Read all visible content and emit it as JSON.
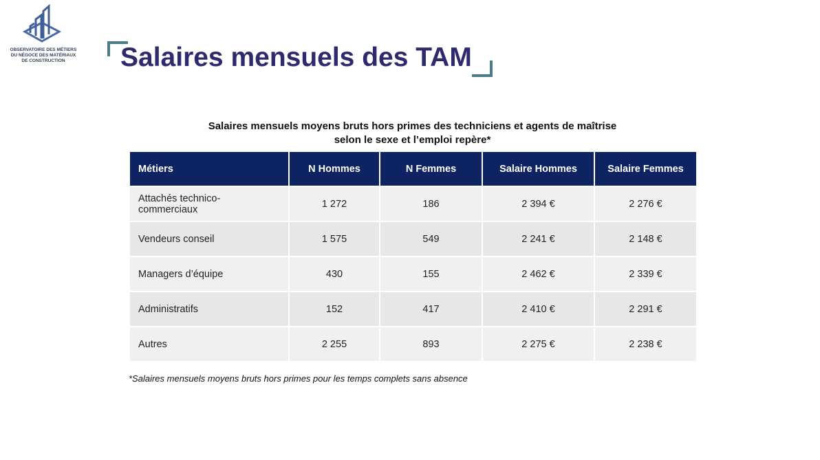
{
  "logo": {
    "lines": [
      "OBSERVATOIRE DES MÉTIERS",
      "DU NÉGOCE DES MATÉRIAUX",
      "DE CONSTRUCTION"
    ]
  },
  "header": {
    "title": "Salaires mensuels des TAM"
  },
  "table": {
    "caption": [
      "Salaires mensuels moyens bruts hors primes des techniciens et agents de maîtrise",
      "selon le sexe et l’emploi repère*"
    ],
    "columns": [
      "Métiers",
      "N Hommes",
      "N Femmes",
      "Salaire Hommes",
      "Salaire Femmes"
    ],
    "rows": [
      [
        "Attachés technico-commerciaux",
        "1 272",
        "186",
        "2 394 €",
        "2 276 €"
      ],
      [
        "Vendeurs conseil",
        "1 575",
        "549",
        "2 241 €",
        "2 148 €"
      ],
      [
        "Managers d’équipe",
        "430",
        "155",
        "2 462 €",
        "2 339 €"
      ],
      [
        "Administratifs",
        "152",
        "417",
        "2 410 €",
        "2 291 €"
      ],
      [
        "Autres",
        "2 255",
        "893",
        "2 275 €",
        "2 238 €"
      ]
    ],
    "footnote": "*Salaires mensuels moyens bruts hors primes pour les temps complets sans absence"
  }
}
